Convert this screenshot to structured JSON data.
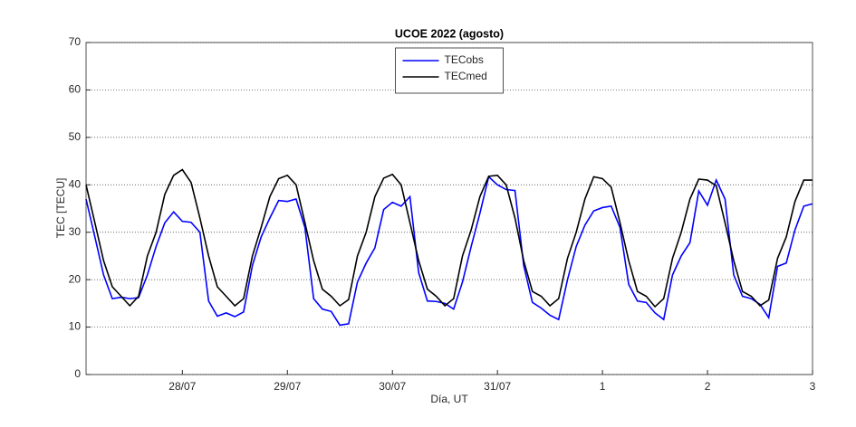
{
  "chart_data": {
    "type": "line",
    "title": "UCOE 2022 (agosto)",
    "x_label": "Día, UT",
    "y_label": "TEC [TECU]",
    "x": [
      0.083,
      0.167,
      0.25,
      0.333,
      0.417,
      0.5,
      0.583,
      0.667,
      0.75,
      0.833,
      0.917,
      1,
      1.083,
      1.167,
      1.25,
      1.333,
      1.417,
      1.5,
      1.583,
      1.667,
      1.75,
      1.833,
      1.917,
      2,
      2.083,
      2.167,
      2.25,
      2.333,
      2.417,
      2.5,
      2.583,
      2.667,
      2.75,
      2.833,
      2.917,
      3,
      3.083,
      3.167,
      3.25,
      3.333,
      3.417,
      3.5,
      3.583,
      3.667,
      3.75,
      3.833,
      3.917,
      4,
      4.083,
      4.167,
      4.25,
      4.333,
      4.417,
      4.5,
      4.583,
      4.667,
      4.75,
      4.833,
      4.917,
      5,
      5.083,
      5.167,
      5.25,
      5.333,
      5.417,
      5.5,
      5.583,
      5.667,
      5.75,
      5.833,
      5.917,
      6,
      6.083,
      6.167,
      6.25,
      6.333,
      6.417,
      6.5,
      6.583,
      6.667,
      6.75,
      6.833,
      6.917,
      7
    ],
    "series": [
      {
        "name": "TECobs",
        "color": "#0000ff",
        "values": [
          37,
          29,
          21,
          16,
          16.3,
          16,
          16.2,
          21,
          27,
          32,
          34.3,
          32.3,
          32.1,
          30,
          15.5,
          12.3,
          13,
          12.2,
          13.2,
          23,
          29,
          33,
          36.7,
          36.5,
          37,
          31,
          16,
          13.8,
          13.3,
          10.4,
          10.7,
          19.5,
          23.5,
          26.7,
          34.8,
          36.3,
          35.5,
          37.5,
          21.5,
          15.5,
          15.4,
          15,
          13.8,
          19.5,
          27,
          34,
          41.7,
          40,
          39,
          38.8,
          23,
          15.2,
          14,
          12.5,
          11.6,
          20,
          27,
          31.5,
          34.5,
          35.2,
          35.5,
          31,
          19,
          15.5,
          15.2,
          13,
          11.6,
          21,
          25,
          27.8,
          38.7,
          35.7,
          41,
          37,
          21,
          16.5,
          16,
          14.8,
          12,
          22.8,
          23.5,
          30.5,
          35.5,
          36
        ]
      },
      {
        "name": "TECmed",
        "color": "#000000",
        "values": [
          40,
          32,
          24,
          18.5,
          16.5,
          14.5,
          16.5,
          25,
          30,
          38,
          42,
          43.2,
          40.5,
          33,
          25,
          18.5,
          16.5,
          14.5,
          16,
          25,
          31,
          37.5,
          41.3,
          42,
          40,
          32,
          24,
          18,
          16.5,
          14.5,
          15.8,
          25,
          30,
          37.5,
          41.4,
          42.2,
          40,
          32,
          24,
          18,
          16.5,
          14.5,
          16,
          25,
          30.5,
          37.5,
          41.8,
          42,
          40,
          33,
          24,
          17.5,
          16.5,
          14.5,
          16,
          24.5,
          30,
          37,
          41.7,
          41.3,
          39.5,
          32,
          24,
          17.5,
          16.5,
          14.3,
          16,
          24.5,
          30,
          37,
          41.2,
          41,
          39.8,
          32,
          24,
          17.5,
          16.5,
          14.5,
          15.7,
          24.5,
          29,
          36.5,
          41,
          41
        ]
      }
    ],
    "xlim": [
      0.083,
      7
    ],
    "xticks": [
      {
        "value": 1,
        "label": "28/07"
      },
      {
        "value": 2,
        "label": "29/07"
      },
      {
        "value": 3,
        "label": "30/07"
      },
      {
        "value": 4,
        "label": "31/07"
      },
      {
        "value": 5,
        "label": "1"
      },
      {
        "value": 6,
        "label": "2"
      },
      {
        "value": 7,
        "label": "3"
      }
    ],
    "ylim": [
      0,
      70
    ],
    "yticks": [
      0,
      10,
      20,
      30,
      40,
      50,
      60,
      70
    ],
    "grid": true,
    "legend": "top"
  }
}
